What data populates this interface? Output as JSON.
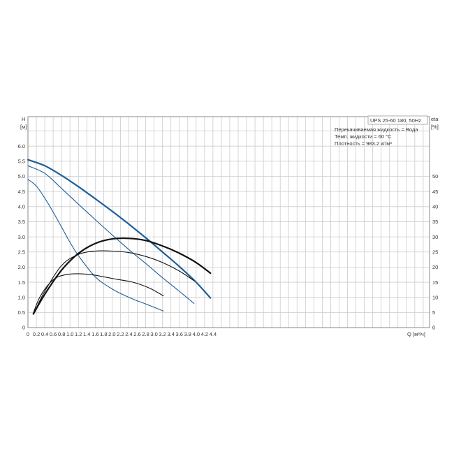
{
  "chart_data": {
    "type": "line",
    "title_box": "UPS 25-60 180, 50Hz",
    "notes": [
      "Перекачиваемая жидкость = Вода",
      "Темп. жидкости = 60 °C",
      "Плотность = 983.2 кг/м³"
    ],
    "left_axis": {
      "label": "H",
      "unit": "[м]",
      "range": [
        0,
        6.0
      ],
      "ticks": [
        "0",
        "0.5",
        "1.0",
        "1.5",
        "2.0",
        "2.5",
        "3.0",
        "3.5",
        "4.0",
        "4.5",
        "5.0",
        "5.5",
        "6.0"
      ]
    },
    "right_axis": {
      "label": "eta",
      "unit": "[%]",
      "range": [
        0,
        60
      ],
      "ticks": [
        "0",
        "5",
        "10",
        "15",
        "20",
        "25",
        "30",
        "35",
        "40",
        "45",
        "50"
      ]
    },
    "x_axis": {
      "label": "Q",
      "unit": "[м³/ч]",
      "range": [
        0,
        4.6
      ],
      "ticks": [
        "0",
        "0.2",
        "0.4",
        "0.6",
        "0.8",
        "1.0",
        "1.2",
        "1.4",
        "1.6",
        "1.8",
        "2.0",
        "2.2",
        "2.4",
        "2.6",
        "2.8",
        "3.0",
        "3.2",
        "3.4",
        "3.6",
        "3.8",
        "4.0",
        "4.2",
        "4.4"
      ]
    },
    "grid": true,
    "colors": {
      "head": "#1f5f99",
      "efficiency": "#111111",
      "grid": "#cccccc"
    },
    "series": [
      {
        "axis": "left",
        "role": "head",
        "stroke": "thick",
        "x": [
          0,
          0.4,
          0.8,
          1.2,
          1.6,
          2.0,
          2.4,
          2.8,
          3.2,
          3.6,
          4.0,
          4.34
        ],
        "y": [
          5.55,
          5.35,
          5.03,
          4.66,
          4.26,
          3.85,
          3.42,
          2.97,
          2.5,
          2.02,
          1.5,
          0.98
        ]
      },
      {
        "axis": "left",
        "role": "head",
        "stroke": "thin",
        "x": [
          0,
          0.4,
          0.8,
          1.2,
          1.6,
          2.0,
          2.4,
          2.8,
          3.2,
          3.6,
          3.95
        ],
        "y": [
          5.35,
          5.1,
          4.6,
          4.08,
          3.57,
          3.07,
          2.58,
          2.12,
          1.65,
          1.2,
          0.8
        ]
      },
      {
        "axis": "left",
        "role": "head",
        "stroke": "thin",
        "x": [
          0,
          0.2,
          0.4,
          0.6,
          0.8,
          1.0,
          1.2,
          1.6,
          2.0,
          2.4,
          2.8,
          3.22
        ],
        "y": [
          4.9,
          4.68,
          4.28,
          3.82,
          3.32,
          2.82,
          2.38,
          1.68,
          1.28,
          1.0,
          0.78,
          0.55
        ]
      },
      {
        "axis": "right",
        "role": "efficiency",
        "stroke": "thick",
        "x": [
          0.13,
          0.4,
          0.8,
          1.2,
          1.6,
          2.0,
          2.4,
          2.8,
          3.2,
          3.6,
          4.0,
          4.34
        ],
        "y": [
          4.5,
          11,
          19,
          24.5,
          27.8,
          29.3,
          29.5,
          28.8,
          27,
          24.6,
          21.5,
          18
        ]
      },
      {
        "axis": "right",
        "role": "efficiency",
        "stroke": "thin",
        "x": [
          0.15,
          0.4,
          0.8,
          1.2,
          1.6,
          2.0,
          2.4,
          2.8,
          3.2,
          3.6,
          3.95
        ],
        "y": [
          5,
          12,
          20.5,
          24.2,
          25.3,
          25.3,
          24.8,
          23.5,
          21.5,
          18.7,
          15.5
        ]
      },
      {
        "axis": "right",
        "role": "efficiency",
        "stroke": "thin",
        "x": [
          0.12,
          0.3,
          0.6,
          0.9,
          1.2,
          1.5,
          1.8,
          2.1,
          2.5,
          2.9,
          3.22
        ],
        "y": [
          4.5,
          10.5,
          15.8,
          17.5,
          17.8,
          17.5,
          16.8,
          16,
          15,
          13,
          10.5
        ]
      }
    ]
  }
}
